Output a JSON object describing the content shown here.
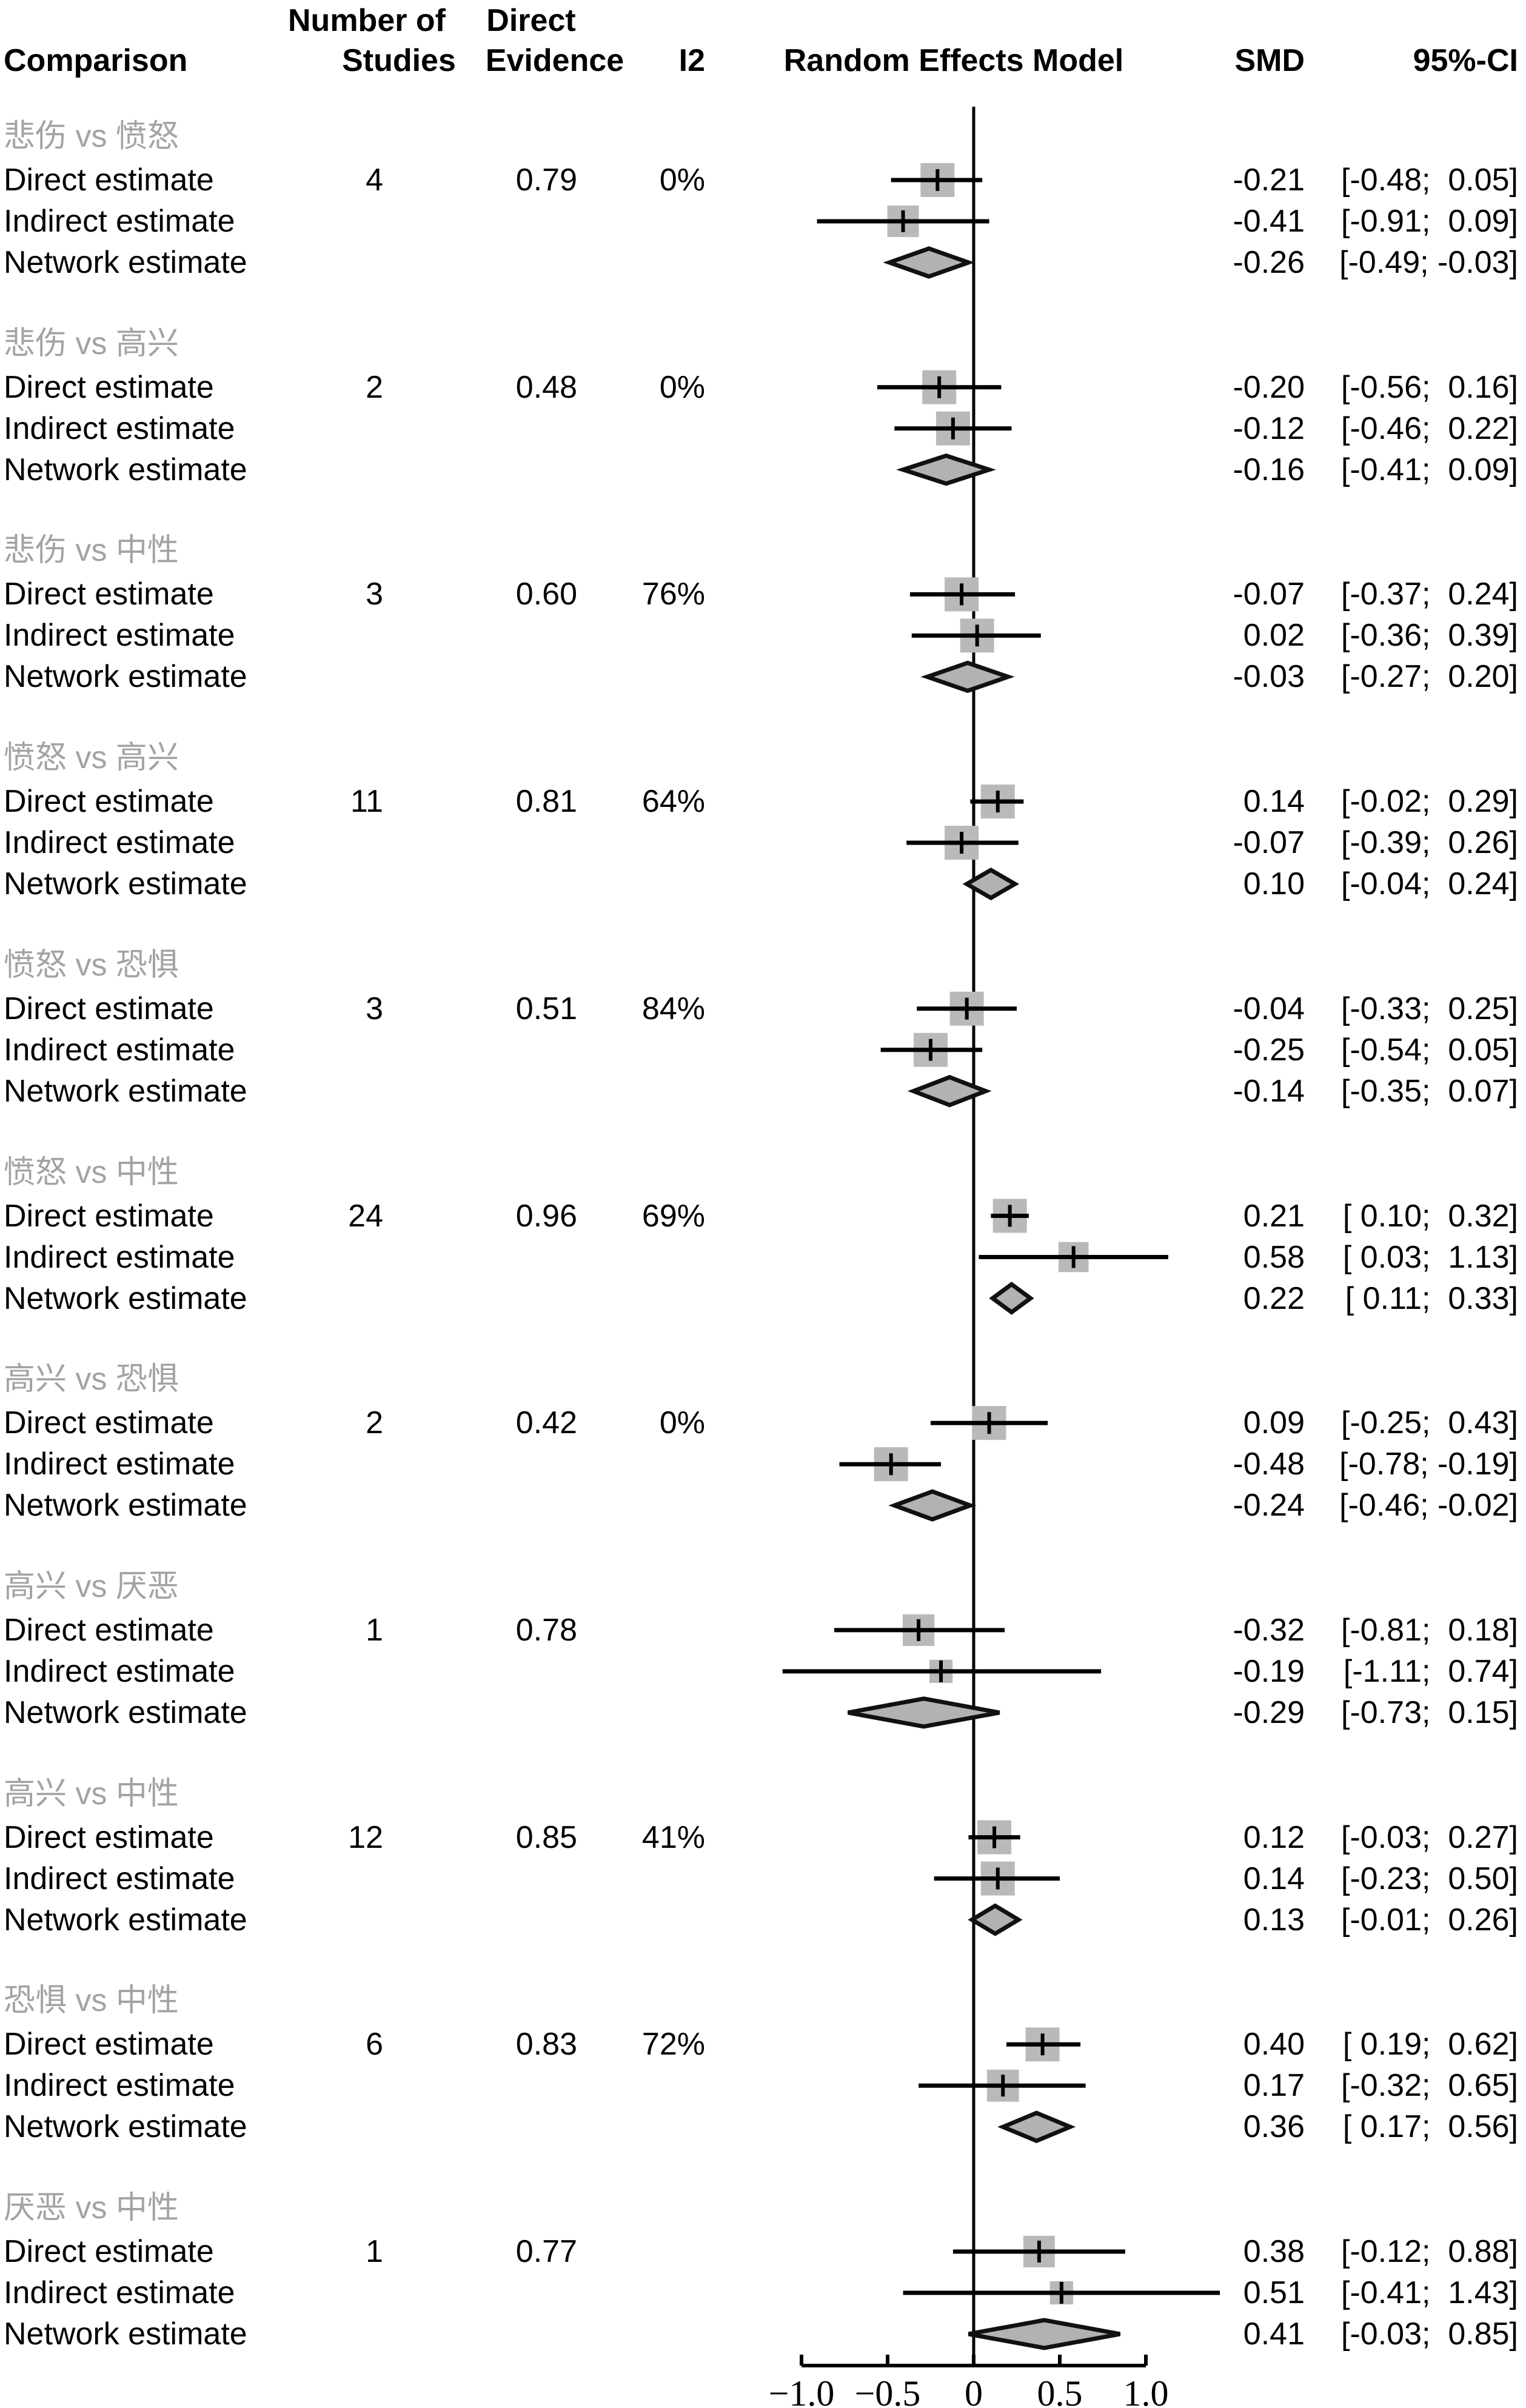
{
  "header": {
    "comparison": "Comparison",
    "studies_line1": "Number of",
    "studies_line2": "Studies",
    "evidence_line1": "Direct",
    "evidence_line2": "Evidence",
    "i2": "I2",
    "forest": "Random Effects Model",
    "smd": "SMD",
    "ci": "95%-CI"
  },
  "row_labels": {
    "direct": "Direct estimate",
    "indirect": "Indirect estimate",
    "network": "Network estimate"
  },
  "colors": {
    "square_fill": "#b9b9b9",
    "diamond_fill": "#b2b2b2",
    "diamond_stroke": "#111111",
    "line": "#000000",
    "group_label": "#a3a3a3"
  },
  "chart_data": {
    "type": "forest",
    "title": "",
    "xlabel": "",
    "x_axis": {
      "tick_labels": [
        "−1.0",
        "−0.5",
        "0",
        "0.5",
        "1.0"
      ],
      "tick_values": [
        -1.0,
        -0.5,
        0,
        0.5,
        1.0
      ],
      "range": [
        -1.0,
        1.0
      ],
      "zero_reference_line": true
    },
    "effect_measure": "SMD",
    "groups": [
      {
        "comparison": "悲伤 vs 愤怒",
        "studies": "4",
        "evidence": "0.79",
        "i2": "0%",
        "rows": [
          {
            "type": "direct",
            "est": -0.21,
            "lo": -0.48,
            "hi": 0.05,
            "smd": "-0.21",
            "ci": "[-0.48;  0.05]"
          },
          {
            "type": "indirect",
            "est": -0.41,
            "lo": -0.91,
            "hi": 0.09,
            "smd": "-0.41",
            "ci": "[-0.91;  0.09]"
          },
          {
            "type": "network",
            "est": -0.26,
            "lo": -0.49,
            "hi": -0.03,
            "smd": "-0.26",
            "ci": "[-0.49; -0.03]"
          }
        ]
      },
      {
        "comparison": "悲伤 vs 高兴",
        "studies": "2",
        "evidence": "0.48",
        "i2": "0%",
        "rows": [
          {
            "type": "direct",
            "est": -0.2,
            "lo": -0.56,
            "hi": 0.16,
            "smd": "-0.20",
            "ci": "[-0.56;  0.16]"
          },
          {
            "type": "indirect",
            "est": -0.12,
            "lo": -0.46,
            "hi": 0.22,
            "smd": "-0.12",
            "ci": "[-0.46;  0.22]"
          },
          {
            "type": "network",
            "est": -0.16,
            "lo": -0.41,
            "hi": 0.09,
            "smd": "-0.16",
            "ci": "[-0.41;  0.09]"
          }
        ]
      },
      {
        "comparison": "悲伤 vs 中性",
        "studies": "3",
        "evidence": "0.60",
        "i2": "76%",
        "rows": [
          {
            "type": "direct",
            "est": -0.07,
            "lo": -0.37,
            "hi": 0.24,
            "smd": "-0.07",
            "ci": "[-0.37;  0.24]"
          },
          {
            "type": "indirect",
            "est": 0.02,
            "lo": -0.36,
            "hi": 0.39,
            "smd": "0.02",
            "ci": "[-0.36;  0.39]"
          },
          {
            "type": "network",
            "est": -0.03,
            "lo": -0.27,
            "hi": 0.2,
            "smd": "-0.03",
            "ci": "[-0.27;  0.20]"
          }
        ]
      },
      {
        "comparison": "愤怒 vs 高兴",
        "studies": "11",
        "evidence": "0.81",
        "i2": "64%",
        "rows": [
          {
            "type": "direct",
            "est": 0.14,
            "lo": -0.02,
            "hi": 0.29,
            "smd": "0.14",
            "ci": "[-0.02;  0.29]"
          },
          {
            "type": "indirect",
            "est": -0.07,
            "lo": -0.39,
            "hi": 0.26,
            "smd": "-0.07",
            "ci": "[-0.39;  0.26]"
          },
          {
            "type": "network",
            "est": 0.1,
            "lo": -0.04,
            "hi": 0.24,
            "smd": "0.10",
            "ci": "[-0.04;  0.24]"
          }
        ]
      },
      {
        "comparison": "愤怒 vs 恐惧",
        "studies": "3",
        "evidence": "0.51",
        "i2": "84%",
        "rows": [
          {
            "type": "direct",
            "est": -0.04,
            "lo": -0.33,
            "hi": 0.25,
            "smd": "-0.04",
            "ci": "[-0.33;  0.25]"
          },
          {
            "type": "indirect",
            "est": -0.25,
            "lo": -0.54,
            "hi": 0.05,
            "smd": "-0.25",
            "ci": "[-0.54;  0.05]"
          },
          {
            "type": "network",
            "est": -0.14,
            "lo": -0.35,
            "hi": 0.07,
            "smd": "-0.14",
            "ci": "[-0.35;  0.07]"
          }
        ]
      },
      {
        "comparison": "愤怒 vs 中性",
        "studies": "24",
        "evidence": "0.96",
        "i2": "69%",
        "rows": [
          {
            "type": "direct",
            "est": 0.21,
            "lo": 0.1,
            "hi": 0.32,
            "smd": "0.21",
            "ci": "[ 0.10;  0.32]"
          },
          {
            "type": "indirect",
            "est": 0.58,
            "lo": 0.03,
            "hi": 1.13,
            "smd": "0.58",
            "ci": "[ 0.03;  1.13]"
          },
          {
            "type": "network",
            "est": 0.22,
            "lo": 0.11,
            "hi": 0.33,
            "smd": "0.22",
            "ci": "[ 0.11;  0.33]"
          }
        ]
      },
      {
        "comparison": "高兴 vs 恐惧",
        "studies": "2",
        "evidence": "0.42",
        "i2": "0%",
        "rows": [
          {
            "type": "direct",
            "est": 0.09,
            "lo": -0.25,
            "hi": 0.43,
            "smd": "0.09",
            "ci": "[-0.25;  0.43]"
          },
          {
            "type": "indirect",
            "est": -0.48,
            "lo": -0.78,
            "hi": -0.19,
            "smd": "-0.48",
            "ci": "[-0.78; -0.19]"
          },
          {
            "type": "network",
            "est": -0.24,
            "lo": -0.46,
            "hi": -0.02,
            "smd": "-0.24",
            "ci": "[-0.46; -0.02]"
          }
        ]
      },
      {
        "comparison": "高兴 vs 厌恶",
        "studies": "1",
        "evidence": "0.78",
        "i2": "",
        "rows": [
          {
            "type": "direct",
            "est": -0.32,
            "lo": -0.81,
            "hi": 0.18,
            "smd": "-0.32",
            "ci": "[-0.81;  0.18]"
          },
          {
            "type": "indirect",
            "est": -0.19,
            "lo": -1.11,
            "hi": 0.74,
            "smd": "-0.19",
            "ci": "[-1.11;  0.74]"
          },
          {
            "type": "network",
            "est": -0.29,
            "lo": -0.73,
            "hi": 0.15,
            "smd": "-0.29",
            "ci": "[-0.73;  0.15]"
          }
        ]
      },
      {
        "comparison": "高兴 vs 中性",
        "studies": "12",
        "evidence": "0.85",
        "i2": "41%",
        "rows": [
          {
            "type": "direct",
            "est": 0.12,
            "lo": -0.03,
            "hi": 0.27,
            "smd": "0.12",
            "ci": "[-0.03;  0.27]"
          },
          {
            "type": "indirect",
            "est": 0.14,
            "lo": -0.23,
            "hi": 0.5,
            "smd": "0.14",
            "ci": "[-0.23;  0.50]"
          },
          {
            "type": "network",
            "est": 0.13,
            "lo": -0.01,
            "hi": 0.26,
            "smd": "0.13",
            "ci": "[-0.01;  0.26]"
          }
        ]
      },
      {
        "comparison": "恐惧 vs 中性",
        "studies": "6",
        "evidence": "0.83",
        "i2": "72%",
        "rows": [
          {
            "type": "direct",
            "est": 0.4,
            "lo": 0.19,
            "hi": 0.62,
            "smd": "0.40",
            "ci": "[ 0.19;  0.62]"
          },
          {
            "type": "indirect",
            "est": 0.17,
            "lo": -0.32,
            "hi": 0.65,
            "smd": "0.17",
            "ci": "[-0.32;  0.65]"
          },
          {
            "type": "network",
            "est": 0.36,
            "lo": 0.17,
            "hi": 0.56,
            "smd": "0.36",
            "ci": "[ 0.17;  0.56]"
          }
        ]
      },
      {
        "comparison": "厌恶 vs 中性",
        "studies": "1",
        "evidence": "0.77",
        "i2": "",
        "rows": [
          {
            "type": "direct",
            "est": 0.38,
            "lo": -0.12,
            "hi": 0.88,
            "smd": "0.38",
            "ci": "[-0.12;  0.88]"
          },
          {
            "type": "indirect",
            "est": 0.51,
            "lo": -0.41,
            "hi": 1.43,
            "smd": "0.51",
            "ci": "[-0.41;  1.43]"
          },
          {
            "type": "network",
            "est": 0.41,
            "lo": -0.03,
            "hi": 0.85,
            "smd": "0.41",
            "ci": "[-0.03;  0.85]"
          }
        ]
      }
    ]
  }
}
